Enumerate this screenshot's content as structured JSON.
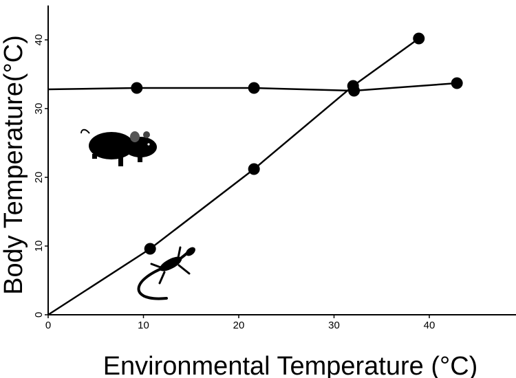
{
  "chart_data": {
    "type": "line",
    "title": "",
    "xlabel": "Environmental Temperature (°C)",
    "ylabel": "Body Temperature(°C)",
    "xlim": [
      0,
      49
    ],
    "ylim": [
      0,
      45
    ],
    "xticks": [
      0,
      10,
      20,
      30,
      40
    ],
    "yticks": [
      0,
      10,
      20,
      30,
      40
    ],
    "grid": false,
    "series": [
      {
        "icon": "mouse-icon",
        "color": "#000000",
        "start": [
          0,
          32.8
        ],
        "points": [
          [
            9.3,
            33.0
          ],
          [
            21.6,
            33.0
          ],
          [
            32.1,
            32.6
          ],
          [
            42.9,
            33.7
          ]
        ]
      },
      {
        "icon": "lizard-icon",
        "color": "#000000",
        "start": [
          0,
          0
        ],
        "points": [
          [
            10.7,
            9.6
          ],
          [
            21.6,
            21.2
          ],
          [
            32.0,
            33.3
          ],
          [
            38.9,
            40.2
          ]
        ]
      }
    ]
  }
}
